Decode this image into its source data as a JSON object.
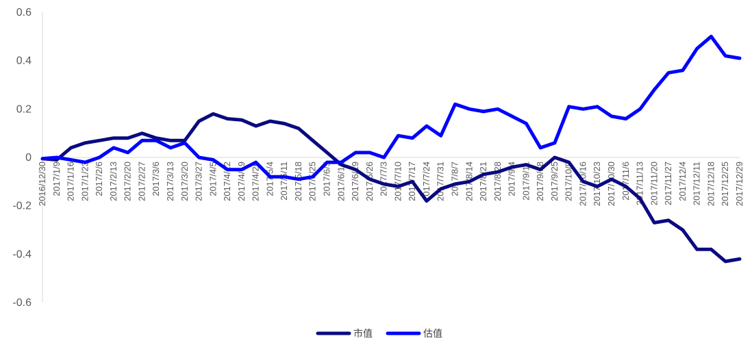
{
  "chart_data": {
    "type": "line",
    "title": "",
    "xlabel": "",
    "ylabel": "",
    "ylim": [
      -0.6,
      0.6
    ],
    "yticks": [
      "0.6",
      "0.4",
      "0.2",
      "0",
      "-0.2",
      "-0.4",
      "-0.6"
    ],
    "grid": false,
    "legend": "bottom",
    "x_labels": [
      "2016/12/30",
      "2017/1/9",
      "2017/1/16",
      "2017/1/23",
      "2017/2/6",
      "2017/2/13",
      "2017/2/20",
      "2017/2/27",
      "2017/3/6",
      "2017/3/13",
      "2017/3/20",
      "2017/3/27",
      "2017/4/5",
      "2017/4/12",
      "2017/4/19",
      "2017/4/26",
      "2017/5/4",
      "2017/5/11",
      "2017/5/18",
      "2017/5/25",
      "2017/6/5",
      "2017/6/12",
      "2017/6/19",
      "2017/6/26",
      "2017/7/3",
      "2017/7/10",
      "2017/7/17",
      "2017/7/24",
      "2017/7/31",
      "2017/8/7",
      "2017/8/14",
      "2017/8/21",
      "2017/8/28",
      "2017/9/4",
      "2017/9/11",
      "2017/9/18",
      "2017/9/25",
      "2017/10/9",
      "2017/10/16",
      "2017/10/23",
      "2017/10/30",
      "2017/11/6",
      "2017/11/13",
      "2017/11/20",
      "2017/11/27",
      "2017/12/4",
      "2017/12/11",
      "2017/12/18",
      "2017/12/25",
      "2017/12/29"
    ],
    "series": [
      {
        "name": "市值",
        "color": "#0a0a80",
        "values": [
          -0.005,
          -0.01,
          0.04,
          0.06,
          0.07,
          0.08,
          0.08,
          0.1,
          0.08,
          0.07,
          0.07,
          0.15,
          0.18,
          0.16,
          0.155,
          0.13,
          0.15,
          0.14,
          0.12,
          0.07,
          0.02,
          -0.03,
          -0.05,
          -0.09,
          -0.11,
          -0.12,
          -0.1,
          -0.18,
          -0.13,
          -0.11,
          -0.1,
          -0.07,
          -0.06,
          -0.04,
          -0.03,
          -0.05,
          0,
          -0.02,
          -0.1,
          -0.12,
          -0.09,
          -0.12,
          -0.17,
          -0.27,
          -0.26,
          -0.3,
          -0.38,
          -0.38,
          -0.43,
          -0.42
        ]
      },
      {
        "name": "估值",
        "color": "#0000ff",
        "values": [
          -0.005,
          0.0,
          -0.01,
          -0.02,
          0.0,
          0.04,
          0.02,
          0.07,
          0.07,
          0.04,
          0.06,
          0.0,
          -0.01,
          -0.05,
          -0.05,
          -0.02,
          -0.08,
          -0.08,
          -0.09,
          -0.08,
          -0.02,
          -0.02,
          0.02,
          0.02,
          0.0,
          0.09,
          0.08,
          0.13,
          0.09,
          0.22,
          0.2,
          0.19,
          0.2,
          0.17,
          0.14,
          0.04,
          0.06,
          0.21,
          0.2,
          0.21,
          0.17,
          0.16,
          0.2,
          0.28,
          0.35,
          0.36,
          0.45,
          0.5,
          0.42,
          0.41
        ]
      }
    ]
  }
}
